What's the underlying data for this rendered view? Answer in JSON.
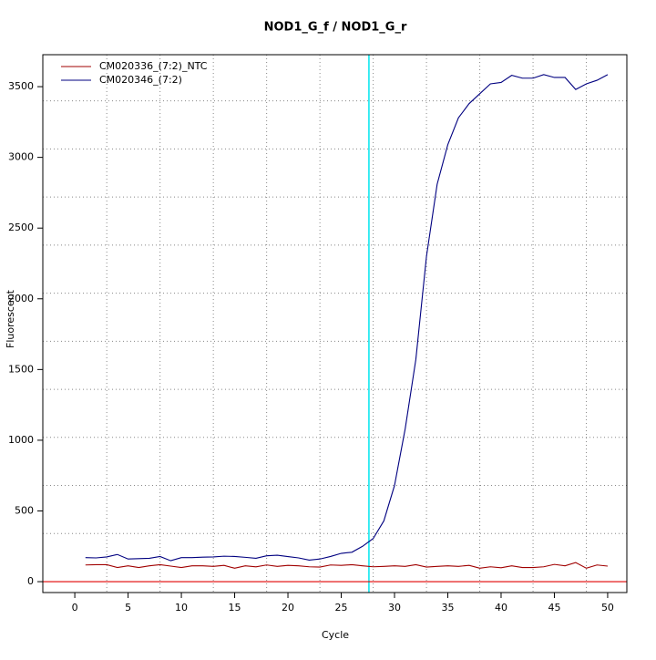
{
  "chart_data": {
    "type": "line",
    "title": "NOD1_G_f / NOD1_G_r",
    "x_label": "Cycle",
    "y_label": "Fluorescent",
    "x": [
      1,
      2,
      3,
      4,
      5,
      6,
      7,
      8,
      9,
      10,
      11,
      12,
      13,
      14,
      15,
      16,
      17,
      18,
      19,
      20,
      21,
      22,
      23,
      24,
      25,
      26,
      27,
      28,
      29,
      30,
      31,
      32,
      33,
      34,
      35,
      36,
      37,
      38,
      39,
      40,
      41,
      42,
      43,
      44,
      45,
      46,
      47,
      48,
      49,
      50
    ],
    "series": [
      {
        "name": "CM020336_(7:2)_NTC",
        "color": "#a00000",
        "values": [
          118,
          120,
          120,
          100,
          112,
          100,
          112,
          120,
          110,
          100,
          112,
          112,
          108,
          115,
          95,
          112,
          105,
          118,
          108,
          115,
          112,
          105,
          103,
          118,
          115,
          120,
          112,
          105,
          108,
          112,
          108,
          120,
          103,
          108,
          112,
          108,
          115,
          95,
          105,
          98,
          112,
          100,
          100,
          105,
          122,
          112,
          135,
          95,
          118,
          110
        ]
      },
      {
        "name": "CM020346_(7:2)",
        "color": "#000080",
        "values": [
          170,
          168,
          175,
          192,
          160,
          163,
          165,
          178,
          148,
          170,
          170,
          173,
          175,
          180,
          178,
          172,
          165,
          183,
          187,
          177,
          168,
          152,
          160,
          178,
          200,
          208,
          250,
          305,
          430,
          680,
          1080,
          1570,
          2300,
          2810,
          3090,
          3280,
          3380,
          3450,
          3520,
          3530,
          3580,
          3560,
          3560,
          3585,
          3565,
          3565,
          3480,
          3520,
          3545,
          3585
        ]
      }
    ],
    "xlim": [
      -3,
      51.8
    ],
    "ylim": [
      -77,
      3726
    ],
    "xticks": [
      0,
      5,
      10,
      15,
      20,
      25,
      30,
      35,
      40,
      45,
      50
    ],
    "yticks": [
      0,
      500,
      1000,
      1500,
      2000,
      2500,
      3000,
      3500
    ],
    "xgrid": [
      3,
      8,
      13,
      18,
      23,
      28,
      33,
      38,
      43,
      48
    ],
    "ygrid": [
      340,
      680,
      1020,
      1360,
      1700,
      2040,
      2380,
      2720,
      3060,
      3400
    ],
    "threshold_y": 0,
    "threshold_color": "#e00000",
    "vline_x": 27.6,
    "vline_color": "#00e5ee",
    "legend": "top-left"
  }
}
